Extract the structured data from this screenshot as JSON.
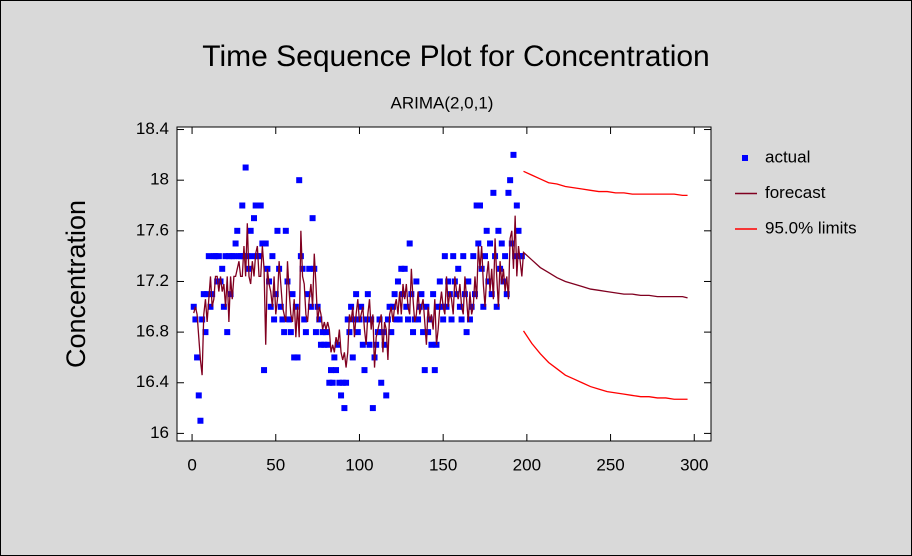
{
  "chart_data": {
    "type": "time_sequence",
    "title": "Time Sequence Plot for Concentration",
    "subtitle": "ARIMA(2,0,1)",
    "y_label": "Concentration",
    "xlim": [
      -9,
      310
    ],
    "xticks": [
      0,
      50,
      100,
      150,
      200,
      250,
      300
    ],
    "ylim": [
      15.94,
      18.42
    ],
    "yticks": [
      16,
      16.4,
      16.8,
      17.2,
      17.6,
      18,
      18.4
    ],
    "series": [
      {
        "name": "actual",
        "color": "#0000ff",
        "style": "points",
        "x": [
          1,
          2,
          3,
          4,
          5,
          6,
          7,
          8,
          9,
          10,
          11,
          12,
          13,
          14,
          15,
          16,
          17,
          18,
          19,
          20,
          21,
          22,
          23,
          24,
          25,
          26,
          27,
          28,
          29,
          30,
          31,
          32,
          33,
          34,
          35,
          36,
          37,
          38,
          39,
          40,
          41,
          42,
          43,
          44,
          45,
          46,
          47,
          48,
          49,
          50,
          51,
          52,
          53,
          54,
          55,
          56,
          57,
          58,
          59,
          60,
          61,
          62,
          63,
          64,
          65,
          66,
          67,
          68,
          69,
          70,
          71,
          72,
          73,
          74,
          75,
          76,
          77,
          78,
          79,
          80,
          81,
          82,
          83,
          84,
          85,
          86,
          87,
          88,
          89,
          90,
          91,
          92,
          93,
          94,
          95,
          96,
          97,
          98,
          99,
          100,
          101,
          102,
          103,
          104,
          105,
          106,
          107,
          108,
          109,
          110,
          111,
          112,
          113,
          114,
          115,
          116,
          117,
          118,
          119,
          120,
          121,
          122,
          123,
          124,
          125,
          126,
          127,
          128,
          129,
          130,
          131,
          132,
          133,
          134,
          135,
          136,
          137,
          138,
          139,
          140,
          141,
          142,
          143,
          144,
          145,
          146,
          147,
          148,
          149,
          150,
          151,
          152,
          153,
          154,
          155,
          156,
          157,
          158,
          159,
          160,
          161,
          162,
          163,
          164,
          165,
          166,
          167,
          168,
          169,
          170,
          171,
          172,
          173,
          174,
          175,
          176,
          177,
          178,
          179,
          180,
          181,
          182,
          183,
          184,
          185,
          186,
          187,
          188,
          189,
          190,
          191,
          192,
          193,
          194,
          195,
          196,
          197
        ],
        "values": [
          17.0,
          16.9,
          16.6,
          16.3,
          16.1,
          16.9,
          17.1,
          16.8,
          17.1,
          17.4,
          17.0,
          17.1,
          17.4,
          17.4,
          17.2,
          17.4,
          17.2,
          17.3,
          17.0,
          17.4,
          16.8,
          17.4,
          17.1,
          17.4,
          17.4,
          17.5,
          17.6,
          17.4,
          17.4,
          17.8,
          17.4,
          18.1,
          17.4,
          17.3,
          17.6,
          17.4,
          17.7,
          17.8,
          17.4,
          17.4,
          17.8,
          17.5,
          16.5,
          17.5,
          17.3,
          17.2,
          17.0,
          17.4,
          16.9,
          17.1,
          17.6,
          17.3,
          17.0,
          16.9,
          16.8,
          17.6,
          17.2,
          16.9,
          16.8,
          17.1,
          16.6,
          17.0,
          16.6,
          18.0,
          17.4,
          17.3,
          16.9,
          16.8,
          17.1,
          17.3,
          17.0,
          17.7,
          17.3,
          16.8,
          17.0,
          16.9,
          16.7,
          16.8,
          16.7,
          16.8,
          16.7,
          16.4,
          16.5,
          16.4,
          16.6,
          16.5,
          16.7,
          16.4,
          16.3,
          16.4,
          16.2,
          16.4,
          16.9,
          16.8,
          17.0,
          16.6,
          16.9,
          17.1,
          16.8,
          16.9,
          17.0,
          16.7,
          16.5,
          16.9,
          17.1,
          16.7,
          16.9,
          16.2,
          16.6,
          16.7,
          16.8,
          16.9,
          16.4,
          16.8,
          16.7,
          16.3,
          16.9,
          17.0,
          16.8,
          17.0,
          17.1,
          16.9,
          17.2,
          16.9,
          17.3,
          17.1,
          17.3,
          17.0,
          16.9,
          17.5,
          17.1,
          16.8,
          16.9,
          17.2,
          16.9,
          17.0,
          17.1,
          16.8,
          16.5,
          17.0,
          16.8,
          16.9,
          16.7,
          17.1,
          16.5,
          16.7,
          17.0,
          17.2,
          17.0,
          16.9,
          17.4,
          17.0,
          17.2,
          17.1,
          16.9,
          17.4,
          17.2,
          17.1,
          17.3,
          17.0,
          16.9,
          17.4,
          17.1,
          16.8,
          17.2,
          16.9,
          17.0,
          17.4,
          17.1,
          17.8,
          17.5,
          17.8,
          17.3,
          17.0,
          17.4,
          17.6,
          17.2,
          17.5,
          17.1,
          17.9,
          17.4,
          17.0,
          17.6,
          17.3,
          17.5,
          17.2,
          17.4,
          17.1,
          17.9,
          18.0,
          17.5,
          18.2,
          17.4,
          17.8,
          17.6,
          17.4,
          17.4
        ]
      },
      {
        "name": "forecast",
        "color": "#800020",
        "style": "line",
        "x": [
          1,
          2,
          3,
          4,
          5,
          6,
          7,
          8,
          9,
          10,
          11,
          12,
          13,
          14,
          15,
          16,
          17,
          18,
          19,
          20,
          21,
          22,
          23,
          24,
          25,
          26,
          27,
          28,
          29,
          30,
          31,
          32,
          33,
          34,
          35,
          36,
          37,
          38,
          39,
          40,
          41,
          42,
          43,
          44,
          45,
          46,
          47,
          48,
          49,
          50,
          51,
          52,
          53,
          54,
          55,
          56,
          57,
          58,
          59,
          60,
          61,
          62,
          63,
          64,
          65,
          66,
          67,
          68,
          69,
          70,
          71,
          72,
          73,
          74,
          75,
          76,
          77,
          78,
          79,
          80,
          81,
          82,
          83,
          84,
          85,
          86,
          87,
          88,
          89,
          90,
          91,
          92,
          93,
          94,
          95,
          96,
          97,
          98,
          99,
          100,
          101,
          102,
          103,
          104,
          105,
          106,
          107,
          108,
          109,
          110,
          111,
          112,
          113,
          114,
          115,
          116,
          117,
          118,
          119,
          120,
          121,
          122,
          123,
          124,
          125,
          126,
          127,
          128,
          129,
          130,
          131,
          132,
          133,
          134,
          135,
          136,
          137,
          138,
          139,
          140,
          141,
          142,
          143,
          144,
          145,
          146,
          147,
          148,
          149,
          150,
          151,
          152,
          153,
          154,
          155,
          156,
          157,
          158,
          159,
          160,
          161,
          162,
          163,
          164,
          165,
          166,
          167,
          168,
          169,
          170,
          171,
          172,
          173,
          174,
          175,
          176,
          177,
          178,
          179,
          180,
          181,
          182,
          183,
          184,
          185,
          186,
          187,
          188,
          189,
          190,
          191,
          192,
          193,
          194,
          195,
          196,
          197,
          198,
          203,
          208,
          213,
          218,
          223,
          228,
          233,
          238,
          243,
          248,
          253,
          258,
          263,
          268,
          273,
          278,
          283,
          288,
          293,
          296
        ],
        "values": [
          16.95,
          17.0,
          16.94,
          16.76,
          16.58,
          16.46,
          16.94,
          17.06,
          16.88,
          17.06,
          17.24,
          17.0,
          17.06,
          17.24,
          17.24,
          17.12,
          17.24,
          17.12,
          17.18,
          17.0,
          17.24,
          16.88,
          17.24,
          17.06,
          17.24,
          17.24,
          17.3,
          17.36,
          17.24,
          17.24,
          17.48,
          17.24,
          17.66,
          17.24,
          17.18,
          17.36,
          17.24,
          17.42,
          17.48,
          17.24,
          17.24,
          17.48,
          17.3,
          16.7,
          17.3,
          17.18,
          17.12,
          17.0,
          17.24,
          16.94,
          17.06,
          17.36,
          17.18,
          17.0,
          16.94,
          16.88,
          17.36,
          17.12,
          16.94,
          16.88,
          17.06,
          16.76,
          17.0,
          16.76,
          17.6,
          17.24,
          17.18,
          16.94,
          16.88,
          17.06,
          17.18,
          17.0,
          17.42,
          17.18,
          16.88,
          17.0,
          16.94,
          16.82,
          16.88,
          16.82,
          16.88,
          16.82,
          16.64,
          16.7,
          16.64,
          16.76,
          16.7,
          16.82,
          16.64,
          16.58,
          16.64,
          16.52,
          16.64,
          16.94,
          16.88,
          17.0,
          16.76,
          16.94,
          17.06,
          16.88,
          16.94,
          17.0,
          16.82,
          16.7,
          16.94,
          17.06,
          16.82,
          16.94,
          16.52,
          16.76,
          16.82,
          16.88,
          16.94,
          16.64,
          16.88,
          16.82,
          16.58,
          16.94,
          17.0,
          16.88,
          17.0,
          17.06,
          16.94,
          17.12,
          16.94,
          17.18,
          17.06,
          17.18,
          17.0,
          16.94,
          17.3,
          17.06,
          16.88,
          16.94,
          17.12,
          16.94,
          17.0,
          17.06,
          16.88,
          16.7,
          17.0,
          16.88,
          16.94,
          16.82,
          17.06,
          16.7,
          16.82,
          17.0,
          17.12,
          17.0,
          16.94,
          17.24,
          17.0,
          17.12,
          17.06,
          16.94,
          17.24,
          17.12,
          17.06,
          17.18,
          17.0,
          16.94,
          17.24,
          17.06,
          16.88,
          17.12,
          16.94,
          17.0,
          17.24,
          17.06,
          17.48,
          17.3,
          17.48,
          17.18,
          17.0,
          17.24,
          17.36,
          17.12,
          17.3,
          17.06,
          17.54,
          17.24,
          17.0,
          17.36,
          17.18,
          17.3,
          17.12,
          17.24,
          17.06,
          17.54,
          17.6,
          17.3,
          17.72,
          17.24,
          17.48,
          17.36,
          17.24,
          17.43,
          17.37,
          17.31,
          17.27,
          17.23,
          17.2,
          17.18,
          17.16,
          17.14,
          17.13,
          17.12,
          17.11,
          17.1,
          17.1,
          17.09,
          17.09,
          17.08,
          17.08,
          17.08,
          17.08,
          17.07
        ]
      },
      {
        "name": "95.0% limits",
        "color": "#ff0000",
        "style": "band",
        "x": [
          198,
          203,
          208,
          213,
          218,
          223,
          228,
          233,
          238,
          243,
          248,
          253,
          258,
          263,
          268,
          273,
          278,
          283,
          288,
          293,
          296
        ],
        "values": [
          18.07,
          18.04,
          18.01,
          17.98,
          17.97,
          17.95,
          17.94,
          17.93,
          17.92,
          17.91,
          17.91,
          17.9,
          17.9,
          17.89,
          17.89,
          17.89,
          17.89,
          17.89,
          17.89,
          17.88,
          17.88
        ],
        "lower": [
          16.81,
          16.71,
          16.63,
          16.56,
          16.51,
          16.46,
          16.43,
          16.4,
          16.37,
          16.35,
          16.33,
          16.32,
          16.31,
          16.3,
          16.29,
          16.29,
          16.28,
          16.28,
          16.27,
          16.27,
          16.27
        ]
      }
    ]
  }
}
